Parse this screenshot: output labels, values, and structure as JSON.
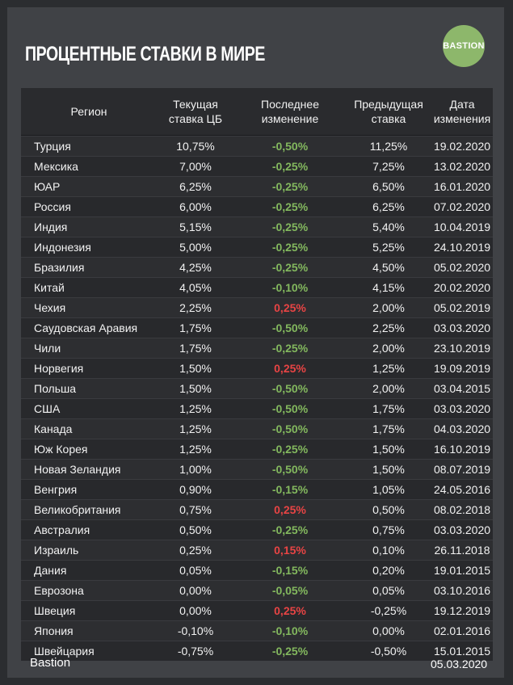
{
  "header": {
    "title": "ПРОЦЕНТНЫЕ СТАВКИ В МИРЕ",
    "logo_text": "BASTION"
  },
  "colors": {
    "positive_change": "#e84444",
    "negative_change": "#83b85e",
    "logo_bg": "#8db76b"
  },
  "chart_data": {
    "type": "table",
    "columns": [
      "Регион",
      "Текущая\nставка ЦБ",
      "Последнее\nизменение",
      "Предыдущая\nставка",
      "Дата\nизменения"
    ],
    "rows": [
      [
        "Турция",
        "10,75%",
        "-0,50%",
        "11,25%",
        "19.02.2020"
      ],
      [
        "Мексика",
        "7,00%",
        "-0,25%",
        "7,25%",
        "13.02.2020"
      ],
      [
        "ЮАР",
        "6,25%",
        "-0,25%",
        "6,50%",
        "16.01.2020"
      ],
      [
        "Россия",
        "6,00%",
        "-0,25%",
        "6,25%",
        "07.02.2020"
      ],
      [
        "Индия",
        "5,15%",
        "-0,25%",
        "5,40%",
        "10.04.2019"
      ],
      [
        "Индонезия",
        "5,00%",
        "-0,25%",
        "5,25%",
        "24.10.2019"
      ],
      [
        "Бразилия",
        "4,25%",
        "-0,25%",
        "4,50%",
        "05.02.2020"
      ],
      [
        "Китай",
        "4,05%",
        "-0,10%",
        "4,15%",
        "20.02.2020"
      ],
      [
        "Чехия",
        "2,25%",
        "0,25%",
        "2,00%",
        "05.02.2019"
      ],
      [
        "Саудовская Аравия",
        "1,75%",
        "-0,50%",
        "2,25%",
        "03.03.2020"
      ],
      [
        "Чили",
        "1,75%",
        "-0,25%",
        "2,00%",
        "23.10.2019"
      ],
      [
        "Норвегия",
        "1,50%",
        "0,25%",
        "1,25%",
        "19.09.2019"
      ],
      [
        "Польша",
        "1,50%",
        "-0,50%",
        "2,00%",
        "03.04.2015"
      ],
      [
        "США",
        "1,25%",
        "-0,50%",
        "1,75%",
        "03.03.2020"
      ],
      [
        "Канада",
        "1,25%",
        "-0,50%",
        "1,75%",
        "04.03.2020"
      ],
      [
        "Юж Корея",
        "1,25%",
        "-0,25%",
        "1,50%",
        "16.10.2019"
      ],
      [
        "Новая Зеландия",
        "1,00%",
        "-0,50%",
        "1,50%",
        "08.07.2019"
      ],
      [
        "Венгрия",
        "0,90%",
        "-0,15%",
        "1,05%",
        "24.05.2016"
      ],
      [
        "Великобритания",
        "0,75%",
        "0,25%",
        "0,50%",
        "08.02.2018"
      ],
      [
        "Австралия",
        "0,50%",
        "-0,25%",
        "0,75%",
        "03.03.2020"
      ],
      [
        "Израиль",
        "0,25%",
        "0,15%",
        "0,10%",
        "26.11.2018"
      ],
      [
        "Дания",
        "0,05%",
        "-0,15%",
        "0,20%",
        "19.01.2015"
      ],
      [
        "Еврозона",
        "0,00%",
        "-0,05%",
        "0,05%",
        "03.10.2016"
      ],
      [
        "Швеция",
        "0,00%",
        "0,25%",
        "-0,25%",
        "19.12.2019"
      ],
      [
        "Япония",
        "-0,10%",
        "-0,10%",
        "0,00%",
        "02.01.2016"
      ],
      [
        "Швейцария",
        "-0,75%",
        "-0,25%",
        "-0,50%",
        "15.01.2015"
      ]
    ]
  },
  "footer": {
    "source": "Bastion",
    "date": "05.03.2020"
  }
}
